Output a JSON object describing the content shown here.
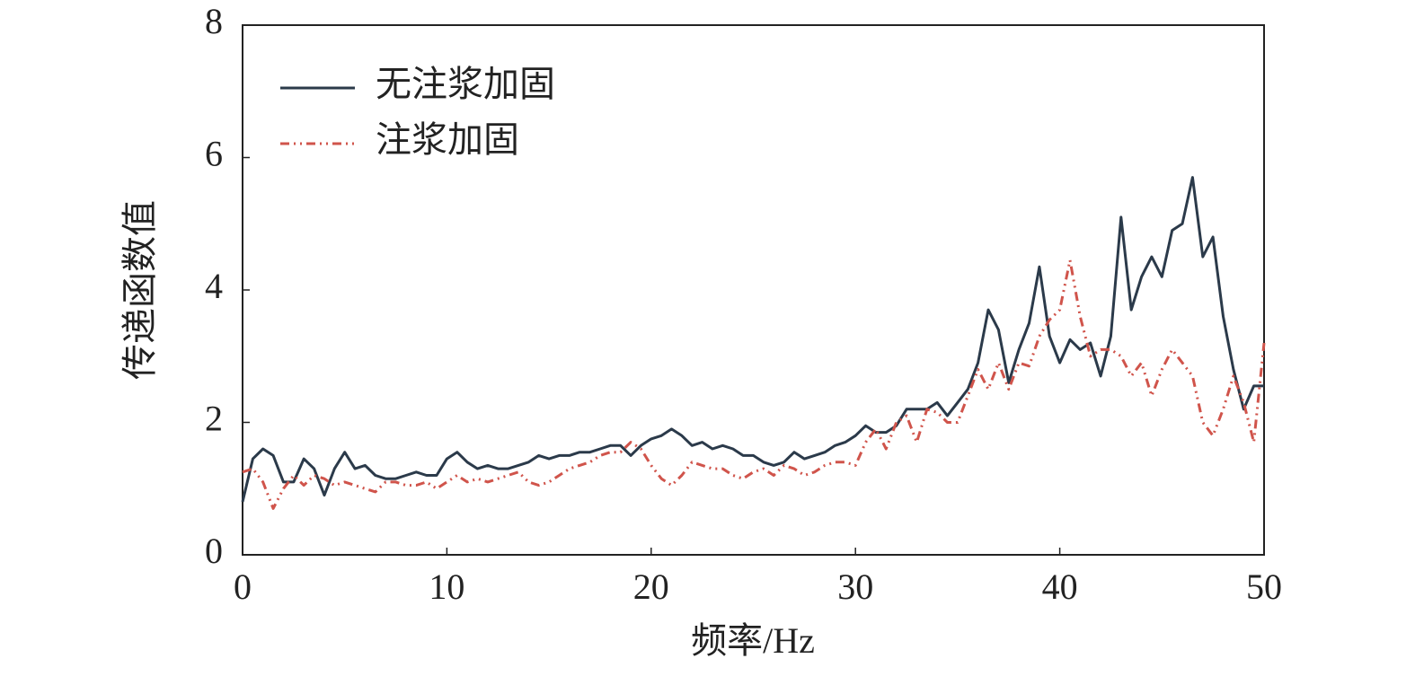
{
  "chart_data": {
    "type": "line",
    "xlabel": "频率/Hz",
    "ylabel": "传递函数值",
    "x": [
      0,
      0.5,
      1,
      1.5,
      2,
      2.5,
      3,
      3.5,
      4,
      4.5,
      5,
      5.5,
      6,
      6.5,
      7,
      7.5,
      8,
      8.5,
      9,
      9.5,
      10,
      10.5,
      11,
      11.5,
      12,
      12.5,
      13,
      13.5,
      14,
      14.5,
      15,
      15.5,
      16,
      16.5,
      17,
      17.5,
      18,
      18.5,
      19,
      19.5,
      20,
      20.5,
      21,
      21.5,
      22,
      22.5,
      23,
      23.5,
      24,
      24.5,
      25,
      25.5,
      26,
      26.5,
      27,
      27.5,
      28,
      28.5,
      29,
      29.5,
      30,
      30.5,
      31,
      31.5,
      32,
      32.5,
      33,
      33.5,
      34,
      34.5,
      35,
      35.5,
      36,
      36.5,
      37,
      37.5,
      38,
      38.5,
      39,
      39.5,
      40,
      40.5,
      41,
      41.5,
      42,
      42.5,
      43,
      43.5,
      44,
      44.5,
      45,
      45.5,
      46,
      46.5,
      47,
      47.5,
      48,
      48.5,
      49,
      49.5,
      50
    ],
    "series": [
      {
        "name": "无注浆加固",
        "color": "#2b3a4a",
        "dash": "solid",
        "values": [
          0.8,
          1.45,
          1.6,
          1.5,
          1.1,
          1.1,
          1.45,
          1.3,
          0.9,
          1.3,
          1.55,
          1.3,
          1.35,
          1.2,
          1.15,
          1.15,
          1.2,
          1.25,
          1.2,
          1.2,
          1.45,
          1.55,
          1.4,
          1.3,
          1.35,
          1.3,
          1.3,
          1.35,
          1.4,
          1.5,
          1.45,
          1.5,
          1.5,
          1.55,
          1.55,
          1.6,
          1.65,
          1.65,
          1.5,
          1.65,
          1.75,
          1.8,
          1.9,
          1.8,
          1.65,
          1.7,
          1.6,
          1.65,
          1.6,
          1.5,
          1.5,
          1.4,
          1.35,
          1.4,
          1.55,
          1.45,
          1.5,
          1.55,
          1.65,
          1.7,
          1.8,
          1.95,
          1.85,
          1.85,
          1.95,
          2.2,
          2.2,
          2.2,
          2.3,
          2.1,
          2.3,
          2.5,
          2.9,
          3.7,
          3.4,
          2.6,
          3.1,
          3.5,
          4.35,
          3.3,
          2.9,
          3.25,
          3.1,
          3.2,
          2.7,
          3.3,
          5.1,
          3.7,
          4.2,
          4.5,
          4.2,
          4.9,
          5.0,
          5.7,
          4.5,
          4.8,
          3.6,
          2.8,
          2.2,
          2.55,
          2.55
        ]
      },
      {
        "name": "注浆加固",
        "color": "#d0544b",
        "dash": "dashdot",
        "values": [
          1.25,
          1.3,
          1.1,
          0.7,
          1.0,
          1.2,
          1.05,
          1.2,
          1.15,
          1.05,
          1.1,
          1.05,
          1.0,
          0.95,
          1.1,
          1.1,
          1.05,
          1.05,
          1.1,
          1.0,
          1.1,
          1.2,
          1.1,
          1.15,
          1.1,
          1.15,
          1.2,
          1.25,
          1.1,
          1.05,
          1.1,
          1.2,
          1.3,
          1.35,
          1.4,
          1.5,
          1.55,
          1.55,
          1.7,
          1.6,
          1.35,
          1.15,
          1.05,
          1.2,
          1.4,
          1.35,
          1.3,
          1.3,
          1.2,
          1.15,
          1.25,
          1.3,
          1.2,
          1.35,
          1.3,
          1.2,
          1.25,
          1.35,
          1.4,
          1.4,
          1.35,
          1.7,
          1.9,
          1.6,
          2.0,
          2.1,
          1.7,
          2.2,
          2.15,
          2.0,
          2.0,
          2.4,
          2.8,
          2.5,
          2.9,
          2.5,
          2.9,
          2.85,
          3.3,
          3.55,
          3.7,
          4.45,
          3.6,
          3.0,
          3.1,
          3.1,
          3.0,
          2.7,
          2.9,
          2.4,
          2.8,
          3.1,
          2.9,
          2.7,
          2.0,
          1.8,
          2.2,
          2.7,
          2.3,
          1.7,
          3.2
        ]
      }
    ],
    "xlim": [
      0,
      50
    ],
    "xticks": [
      0,
      10,
      20,
      30,
      40,
      50
    ],
    "ylim": [
      0,
      8
    ],
    "yticks": [
      0,
      2,
      4,
      6,
      8
    ],
    "legend": "upper left",
    "grid": false
  }
}
